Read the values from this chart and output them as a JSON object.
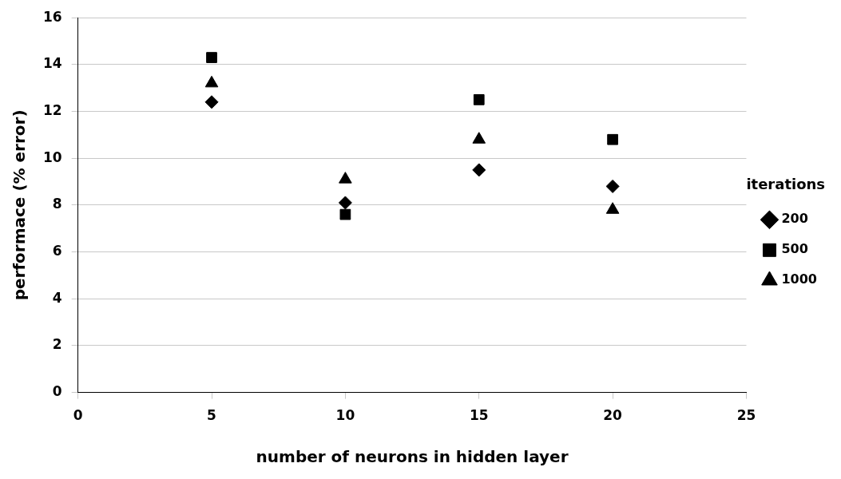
{
  "chart_data": {
    "type": "scatter",
    "xlabel": "number of neurons in hidden layer",
    "ylabel": "performace (% error)",
    "legend_title": "iterations",
    "legend": "right",
    "x": [
      5,
      10,
      15,
      20
    ],
    "series": [
      {
        "name": "200",
        "color": "#000000",
        "marker": "diamond",
        "values": [
          12.4,
          8.1,
          9.5,
          8.8
        ]
      },
      {
        "name": "500",
        "color": "#000000",
        "marker": "square",
        "values": [
          14.3,
          7.6,
          12.5,
          10.8
        ]
      },
      {
        "name": "1000",
        "color": "#000000",
        "marker": "triangle",
        "values": [
          13.2,
          9.1,
          10.8,
          7.8
        ]
      }
    ],
    "xlim": [
      0,
      25
    ],
    "xticks": [
      0,
      5,
      10,
      15,
      20,
      25
    ],
    "ylim": [
      0,
      16
    ],
    "yticks": [
      0,
      2,
      4,
      6,
      8,
      10,
      12,
      14,
      16
    ],
    "grid": "y"
  }
}
